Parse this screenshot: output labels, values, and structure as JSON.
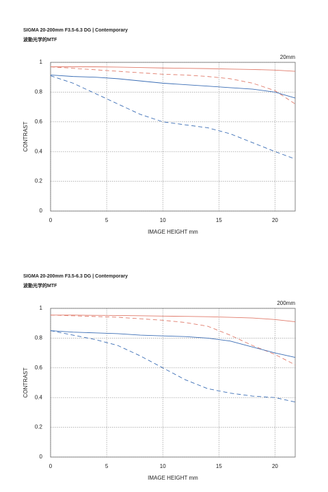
{
  "chart_data": [
    {
      "type": "line",
      "title": "SIGMA 20-200mm F3.5-6.3 DG | Contemporary",
      "subtitle": "波動光学的MTF",
      "annotation": "20mm",
      "x_label": "IMAGE HEIGHT  mm",
      "y_label": "CONTRAST",
      "x": [
        0,
        2,
        4,
        6,
        8,
        10,
        12,
        14,
        16,
        18,
        20,
        21.8
      ],
      "series": [
        {
          "color": "#e07a6a",
          "style": "solid",
          "values": [
            0.97,
            0.97,
            0.97,
            0.968,
            0.965,
            0.962,
            0.96,
            0.958,
            0.955,
            0.952,
            0.948,
            0.94
          ]
        },
        {
          "color": "#e07a6a",
          "style": "dashed",
          "values": [
            0.97,
            0.96,
            0.95,
            0.94,
            0.93,
            0.92,
            0.915,
            0.905,
            0.89,
            0.86,
            0.81,
            0.72
          ]
        },
        {
          "color": "#3a6db5",
          "style": "solid",
          "values": [
            0.915,
            0.905,
            0.9,
            0.89,
            0.875,
            0.86,
            0.85,
            0.84,
            0.83,
            0.82,
            0.8,
            0.76
          ]
        },
        {
          "color": "#3a6db5",
          "style": "dashed",
          "values": [
            0.91,
            0.86,
            0.79,
            0.72,
            0.65,
            0.6,
            0.58,
            0.56,
            0.52,
            0.46,
            0.4,
            0.35
          ]
        }
      ],
      "xlim": [
        0,
        21.8
      ],
      "ylim": [
        0,
        1
      ],
      "xticks": [
        0,
        5,
        10,
        15,
        20
      ],
      "yticks": [
        0,
        0.2,
        0.4,
        0.6,
        0.8,
        1
      ],
      "grid": true
    },
    {
      "type": "line",
      "title": "SIGMA 20-200mm F3.5-6.3 DG | Contemporary",
      "subtitle": "波動光学的MTF",
      "annotation": "200mm",
      "x_label": "IMAGE HEIGHT  mm",
      "y_label": "CONTRAST",
      "x": [
        0,
        2,
        4,
        6,
        8,
        10,
        12,
        14,
        16,
        18,
        20,
        21.8
      ],
      "series": [
        {
          "color": "#e07a6a",
          "style": "solid",
          "values": [
            0.955,
            0.955,
            0.953,
            0.952,
            0.95,
            0.948,
            0.946,
            0.944,
            0.94,
            0.935,
            0.925,
            0.91
          ]
        },
        {
          "color": "#e07a6a",
          "style": "dashed",
          "values": [
            0.955,
            0.95,
            0.945,
            0.94,
            0.93,
            0.92,
            0.905,
            0.88,
            0.82,
            0.75,
            0.69,
            0.62
          ]
        },
        {
          "color": "#3a6db5",
          "style": "solid",
          "values": [
            0.85,
            0.84,
            0.835,
            0.83,
            0.82,
            0.815,
            0.81,
            0.8,
            0.78,
            0.74,
            0.7,
            0.67
          ]
        },
        {
          "color": "#3a6db5",
          "style": "dashed",
          "values": [
            0.85,
            0.82,
            0.79,
            0.75,
            0.68,
            0.6,
            0.52,
            0.46,
            0.43,
            0.41,
            0.4,
            0.37
          ]
        }
      ],
      "xlim": [
        0,
        21.8
      ],
      "ylim": [
        0,
        1
      ],
      "xticks": [
        0,
        5,
        10,
        15,
        20
      ],
      "yticks": [
        0,
        0.2,
        0.4,
        0.6,
        0.8,
        1
      ],
      "grid": true
    }
  ]
}
